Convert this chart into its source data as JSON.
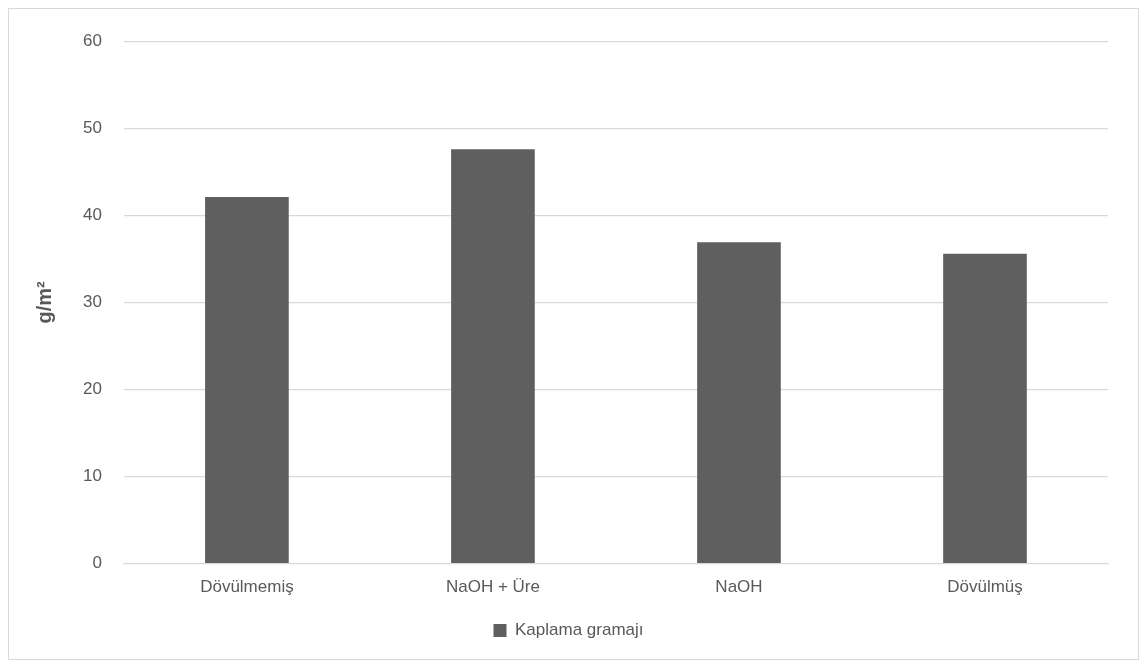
{
  "chart_data": {
    "type": "bar",
    "ylabel": "g/m²",
    "categories": [
      "Dövülmemiş",
      "NaOH + Üre",
      "NaOH",
      "Dövülmüş"
    ],
    "series": [
      {
        "name": "Kaplama gramajı",
        "color": "#5f5f5f",
        "values": [
          42.1,
          47.6,
          36.9,
          35.6
        ]
      }
    ],
    "ylim": [
      0,
      60
    ],
    "yticks": [
      0,
      10,
      20,
      30,
      40,
      50,
      60
    ],
    "grid": "y",
    "legend": "bottom"
  }
}
